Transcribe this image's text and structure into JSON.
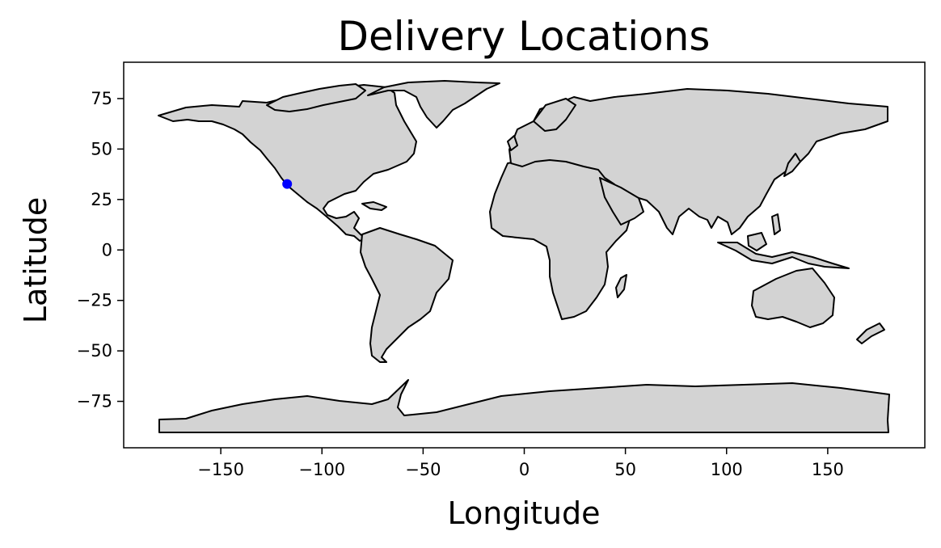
{
  "chart_data": {
    "type": "scatter",
    "title": "Delivery Locations",
    "xlabel": "Longitude",
    "ylabel": "Latitude",
    "xlim": [
      -198,
      198
    ],
    "ylim": [
      -98,
      93
    ],
    "xticks": [
      -150,
      -100,
      -50,
      0,
      50,
      100,
      150
    ],
    "yticks": [
      75,
      50,
      25,
      0,
      -25,
      -50,
      -75
    ],
    "xtick_labels": [
      "−150",
      "−100",
      "−50",
      "0",
      "50",
      "100",
      "150"
    ],
    "ytick_labels": [
      "75",
      "50",
      "25",
      "0",
      "−25",
      "−50",
      "−75"
    ],
    "basemap": "world country outlines",
    "land_color": "#d3d3d3",
    "border_color": "#000000",
    "grid": false,
    "series": [
      {
        "color": "#0000ff",
        "points": [
          {
            "x": -117.2,
            "y": 32.7
          }
        ]
      }
    ]
  }
}
